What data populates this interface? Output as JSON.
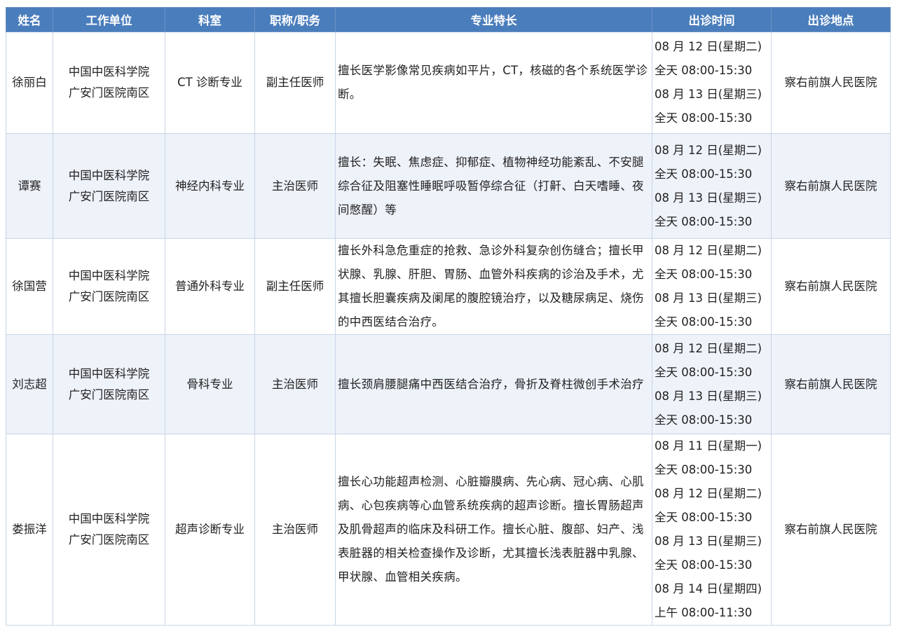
{
  "headers": [
    "姓名",
    "工作单位",
    "科室",
    "职称/职务",
    "专业特长",
    "出诊时间",
    "出诊地点"
  ],
  "colors": {
    "header_bg": "#4a7dbc",
    "alt_row_bg": "#eef2f9",
    "border": "#c9d5e6"
  },
  "rows": [
    {
      "name": "徐丽白",
      "unit": "中国中医科学院广安门医院南区",
      "dept": "CT 诊断专业",
      "title": "副主任医师",
      "specialty": "擅长医学影像常见疾病如平片，CT，核磁的各个系统医学诊断。",
      "times": [
        "08 月 12 日(星期二)",
        "全天 08:00-15:30",
        "08 月 13 日(星期三)",
        "全天 08:00-15:30"
      ],
      "place": "察右前旗人民医院"
    },
    {
      "name": "谭赛",
      "unit": "中国中医科学院广安门医院南区",
      "dept": "神经内科专业",
      "title": "主治医师",
      "specialty": "擅长：失眠、焦虑症、抑郁症、植物神经功能紊乱、不安腿综合征及阻塞性睡眠呼吸暂停综合征（打鼾、白天嗜睡、夜间憋醒）等",
      "times": [
        "08 月 12 日(星期二)",
        "全天 08:00-15:30",
        "08 月 13 日(星期三)",
        "全天 08:00-15:30"
      ],
      "place": "察右前旗人民医院"
    },
    {
      "name": "徐国营",
      "unit": "中国中医科学院广安门医院南区",
      "dept": "普通外科专业",
      "title": "副主任医师",
      "specialty": "擅长外科急危重症的抢救、急诊外科复杂创伤缝合；擅长甲状腺、乳腺、肝胆、胃肠、血管外科疾病的诊治及手术，尤其擅长胆囊疾病及阑尾的腹腔镜治疗，以及糖尿病足、烧伤的中西医结合治疗。",
      "times": [
        "08 月 12 日(星期二)",
        "全天 08:00-15:30",
        "08 月 13 日(星期三)",
        "全天 08:00-15:30"
      ],
      "place": "察右前旗人民医院"
    },
    {
      "name": "刘志超",
      "unit": "中国中医科学院广安门医院南区",
      "dept": "骨科专业",
      "title": "主治医师",
      "specialty": "擅长颈肩腰腿痛中西医结合治疗，骨折及脊柱微创手术治疗",
      "times": [
        "08 月 12 日(星期二)",
        "全天 08:00-15:30",
        "08 月 13 日(星期三)",
        "全天 08:00-15:30"
      ],
      "place": "察右前旗人民医院"
    },
    {
      "name": "娄振洋",
      "unit": "中国中医科学院广安门医院南区",
      "dept": "超声诊断专业",
      "title": "主治医师",
      "specialty": "擅长心功能超声检测、心脏瓣膜病、先心病、冠心病、心肌病、心包疾病等心血管系统疾病的超声诊断。擅长胃肠超声及肌骨超声的临床及科研工作。擅长心脏、腹部、妇产、浅表脏器的相关检查操作及诊断，尤其擅长浅表脏器中乳腺、甲状腺、血管相关疾病。",
      "times": [
        "08 月 11 日(星期一)",
        "全天 08:00-15:30",
        "08 月 12 日(星期二)",
        "全天 08:00-15:30",
        "08 月 13 日(星期三)",
        "全天 08:00-15:30",
        "08 月 14 日(星期四)",
        "上午 08:00-11:30"
      ],
      "place": "察右前旗人民医院"
    }
  ]
}
